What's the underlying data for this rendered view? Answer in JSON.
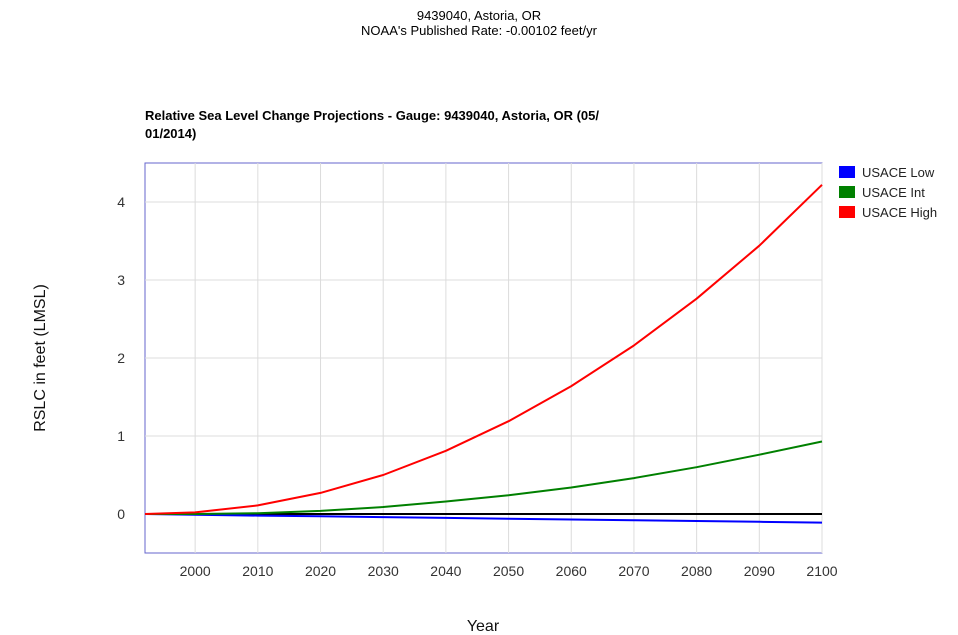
{
  "header": {
    "line1": "9439040, Astoria, OR",
    "line2": "NOAA's Published Rate: -0.00102 feet/yr"
  },
  "chart_data": {
    "type": "line",
    "title": "Relative Sea Level Change Projections - Gauge: 9439040, Astoria, OR (05/01/2014)",
    "title_line1": "Relative Sea Level Change Projections - Gauge: 9439040, Astoria, OR (05/",
    "title_line2": "01/2014)",
    "xlabel": "Year",
    "ylabel": "RSLC in feet (LMSL)",
    "xlim": [
      1992,
      2100
    ],
    "ylim": [
      -0.5,
      4.5
    ],
    "x_ticks": [
      2000,
      2010,
      2020,
      2030,
      2040,
      2050,
      2060,
      2070,
      2080,
      2090,
      2100
    ],
    "y_ticks": [
      0,
      1,
      2,
      3,
      4
    ],
    "grid": true,
    "legend_position": "right",
    "x": [
      1992,
      2000,
      2010,
      2020,
      2030,
      2040,
      2050,
      2060,
      2070,
      2080,
      2090,
      2100
    ],
    "series": [
      {
        "name": "USACE Low",
        "color": "#0000ff",
        "values": [
          0,
          -0.01,
          -0.02,
          -0.03,
          -0.04,
          -0.05,
          -0.06,
          -0.07,
          -0.08,
          -0.09,
          -0.1,
          -0.11
        ]
      },
      {
        "name": "USACE Int",
        "color": "#008000",
        "values": [
          0,
          0.0,
          0.01,
          0.04,
          0.09,
          0.16,
          0.24,
          0.34,
          0.46,
          0.6,
          0.76,
          0.93
        ]
      },
      {
        "name": "USACE High",
        "color": "#ff0000",
        "values": [
          0,
          0.02,
          0.11,
          0.27,
          0.5,
          0.81,
          1.19,
          1.64,
          2.16,
          2.76,
          3.44,
          4.22
        ]
      }
    ],
    "reference_line": {
      "y": 0,
      "color": "#000000"
    }
  }
}
